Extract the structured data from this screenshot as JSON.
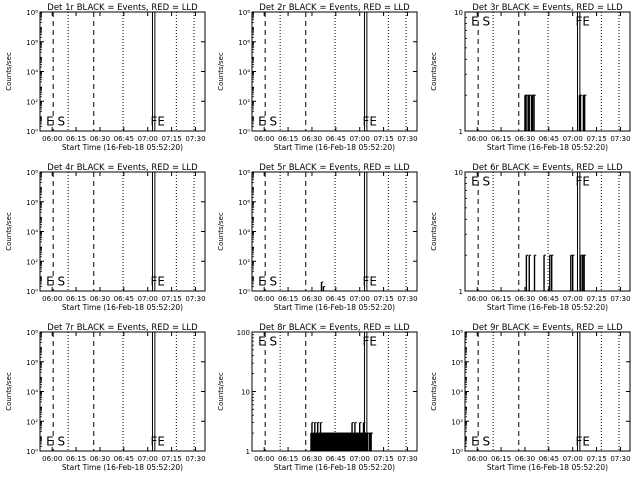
{
  "x_ticks": [
    "06:00",
    "06:15",
    "06:30",
    "06:45",
    "07:00",
    "07:15",
    "07:30"
  ],
  "x_range_hours": [
    5.8722,
    7.6
  ],
  "xlabel": "Start Time (16-Feb-18 05:52:20)",
  "ylabel": "Counts/sec",
  "marker_labels": {
    "es": "E S",
    "fe": "FE"
  },
  "colors": {
    "axes": "#000000",
    "background": "#ffffff",
    "events": "#000000"
  },
  "chart_data": [
    {
      "type": "line",
      "title": "Det 1r BLACK = Events, RED = LLD",
      "scale": "log",
      "ylim": [
        1,
        100000000
      ],
      "y_ticks": [
        {
          "v": 1,
          "t": "10⁰"
        },
        {
          "v": 100,
          "t": "10²"
        },
        {
          "v": 10000,
          "t": "10⁴"
        },
        {
          "v": 1000000,
          "t": "10⁶"
        },
        {
          "v": 100000000,
          "t": "10⁸"
        }
      ],
      "events": []
    },
    {
      "type": "line",
      "title": "Det 2r BLACK = Events, RED = LLD",
      "scale": "log",
      "ylim": [
        1,
        100000000
      ],
      "y_ticks": [
        {
          "v": 1,
          "t": "10⁰"
        },
        {
          "v": 100,
          "t": "10²"
        },
        {
          "v": 10000,
          "t": "10⁴"
        },
        {
          "v": 1000000,
          "t": "10⁶"
        },
        {
          "v": 100000000,
          "t": "10⁸"
        }
      ],
      "events": []
    },
    {
      "type": "line",
      "title": "Det 3r BLACK = Events, RED = LLD",
      "scale": "log",
      "ylim": [
        1,
        10
      ],
      "y_ticks": [
        {
          "v": 1,
          "t": "1"
        },
        {
          "v": 10,
          "t": "10"
        }
      ],
      "events": [
        {
          "x": 6.5,
          "y": 2
        },
        {
          "x": 6.512,
          "y": 2
        },
        {
          "x": 6.522,
          "y": 1
        },
        {
          "x": 6.533,
          "y": 2
        },
        {
          "x": 6.545,
          "y": 2
        },
        {
          "x": 6.557,
          "y": 1
        },
        {
          "x": 6.568,
          "y": 2
        },
        {
          "x": 6.58,
          "y": 2
        },
        {
          "x": 6.595,
          "y": 2
        },
        {
          "x": 7.07,
          "y": 2
        },
        {
          "x": 7.082,
          "y": 2
        },
        {
          "x": 7.1,
          "y": 1
        },
        {
          "x": 7.112,
          "y": 2
        },
        {
          "x": 7.125,
          "y": 2
        }
      ]
    },
    {
      "type": "line",
      "title": "Det 4r BLACK = Events, RED = LLD",
      "scale": "log",
      "ylim": [
        1,
        100000000
      ],
      "y_ticks": [
        {
          "v": 1,
          "t": "10⁰"
        },
        {
          "v": 100,
          "t": "10²"
        },
        {
          "v": 10000,
          "t": "10⁴"
        },
        {
          "v": 1000000,
          "t": "10⁶"
        },
        {
          "v": 100000000,
          "t": "10⁸"
        }
      ],
      "events": []
    },
    {
      "type": "line",
      "title": "Det 5r BLACK = Events, RED = LLD",
      "scale": "log",
      "ylim": [
        1,
        100000000
      ],
      "y_ticks": [
        {
          "v": 1,
          "t": "10⁰"
        },
        {
          "v": 100,
          "t": "10²"
        },
        {
          "v": 10000,
          "t": "10⁴"
        },
        {
          "v": 1000000,
          "t": "10⁶"
        },
        {
          "v": 100000000,
          "t": "10⁸"
        }
      ],
      "events": [
        {
          "x": 6.6,
          "y": 4
        },
        {
          "x": 6.62,
          "y": 2
        }
      ]
    },
    {
      "type": "line",
      "title": "Det 6r BLACK = Events, RED = LLD",
      "scale": "log",
      "ylim": [
        1,
        10
      ],
      "y_ticks": [
        {
          "v": 1,
          "t": "1"
        },
        {
          "v": 10,
          "t": "10"
        }
      ],
      "events": [
        {
          "x": 6.515,
          "y": 2
        },
        {
          "x": 6.545,
          "y": 2
        },
        {
          "x": 6.6,
          "y": 2
        },
        {
          "x": 6.7,
          "y": 2
        },
        {
          "x": 6.76,
          "y": 2
        },
        {
          "x": 6.78,
          "y": 2
        },
        {
          "x": 6.98,
          "y": 2
        },
        {
          "x": 7.0,
          "y": 2
        },
        {
          "x": 7.085,
          "y": 2
        },
        {
          "x": 7.105,
          "y": 2
        },
        {
          "x": 7.12,
          "y": 2
        }
      ]
    },
    {
      "type": "line",
      "title": "Det 7r BLACK = Events, RED = LLD",
      "scale": "log",
      "ylim": [
        1,
        100000000
      ],
      "y_ticks": [
        {
          "v": 1,
          "t": "10⁰"
        },
        {
          "v": 100,
          "t": "10²"
        },
        {
          "v": 10000,
          "t": "10⁴"
        },
        {
          "v": 1000000,
          "t": "10⁶"
        },
        {
          "v": 100000000,
          "t": "10⁸"
        }
      ],
      "events": []
    },
    {
      "type": "line",
      "title": "Det 8r BLACK = Events, RED = LLD",
      "scale": "log",
      "ylim": [
        1,
        100
      ],
      "y_ticks": [
        {
          "v": 1,
          "t": "1"
        },
        {
          "v": 10,
          "t": "10"
        },
        {
          "v": 100,
          "t": "100"
        }
      ],
      "events": [
        {
          "x": 6.49,
          "y": 2
        },
        {
          "x": 6.5,
          "y": 3
        },
        {
          "x": 6.51,
          "y": 2
        },
        {
          "x": 6.52,
          "y": 2
        },
        {
          "x": 6.53,
          "y": 3
        },
        {
          "x": 6.54,
          "y": 2
        },
        {
          "x": 6.55,
          "y": 2
        },
        {
          "x": 6.56,
          "y": 3
        },
        {
          "x": 6.57,
          "y": 2
        },
        {
          "x": 6.58,
          "y": 2
        },
        {
          "x": 6.59,
          "y": 3
        },
        {
          "x": 6.6,
          "y": 2
        },
        {
          "x": 6.61,
          "y": 2
        },
        {
          "x": 6.62,
          "y": 2
        },
        {
          "x": 6.63,
          "y": 2
        },
        {
          "x": 6.64,
          "y": 2
        },
        {
          "x": 6.65,
          "y": 2
        },
        {
          "x": 6.66,
          "y": 2
        },
        {
          "x": 6.67,
          "y": 2
        },
        {
          "x": 6.68,
          "y": 2
        },
        {
          "x": 6.69,
          "y": 2
        },
        {
          "x": 6.7,
          "y": 2
        },
        {
          "x": 6.71,
          "y": 2
        },
        {
          "x": 6.72,
          "y": 2
        },
        {
          "x": 6.73,
          "y": 2
        },
        {
          "x": 6.74,
          "y": 2
        },
        {
          "x": 6.75,
          "y": 2
        },
        {
          "x": 6.76,
          "y": 2
        },
        {
          "x": 6.77,
          "y": 2
        },
        {
          "x": 6.78,
          "y": 2
        },
        {
          "x": 6.79,
          "y": 2
        },
        {
          "x": 6.8,
          "y": 2
        },
        {
          "x": 6.81,
          "y": 2
        },
        {
          "x": 6.82,
          "y": 2
        },
        {
          "x": 6.83,
          "y": 2
        },
        {
          "x": 6.84,
          "y": 2
        },
        {
          "x": 6.85,
          "y": 2
        },
        {
          "x": 6.86,
          "y": 2
        },
        {
          "x": 6.87,
          "y": 2
        },
        {
          "x": 6.88,
          "y": 2
        },
        {
          "x": 6.89,
          "y": 2
        },
        {
          "x": 6.9,
          "y": 2
        },
        {
          "x": 6.91,
          "y": 2
        },
        {
          "x": 6.92,
          "y": 3
        },
        {
          "x": 6.93,
          "y": 2
        },
        {
          "x": 6.94,
          "y": 2
        },
        {
          "x": 6.95,
          "y": 3
        },
        {
          "x": 6.96,
          "y": 2
        },
        {
          "x": 6.97,
          "y": 2
        },
        {
          "x": 6.98,
          "y": 2
        },
        {
          "x": 6.99,
          "y": 2
        },
        {
          "x": 7.0,
          "y": 3
        },
        {
          "x": 7.01,
          "y": 2
        },
        {
          "x": 7.02,
          "y": 2
        },
        {
          "x": 7.03,
          "y": 2
        },
        {
          "x": 7.04,
          "y": 3
        },
        {
          "x": 7.05,
          "y": 2
        },
        {
          "x": 7.06,
          "y": 2
        },
        {
          "x": 7.07,
          "y": 2
        },
        {
          "x": 7.08,
          "y": 2
        },
        {
          "x": 7.1,
          "y": 2
        },
        {
          "x": 7.11,
          "y": 2
        },
        {
          "x": 7.12,
          "y": 2
        }
      ]
    },
    {
      "type": "line",
      "title": "Det 9r BLACK = Events, RED = LLD",
      "scale": "log",
      "ylim": [
        1,
        100000000
      ],
      "y_ticks": [
        {
          "v": 1,
          "t": "10⁰"
        },
        {
          "v": 100,
          "t": "10²"
        },
        {
          "v": 10000,
          "t": "10⁴"
        },
        {
          "v": 1000000,
          "t": "10⁶"
        },
        {
          "v": 100000000,
          "t": "10⁸"
        }
      ],
      "events": []
    }
  ]
}
